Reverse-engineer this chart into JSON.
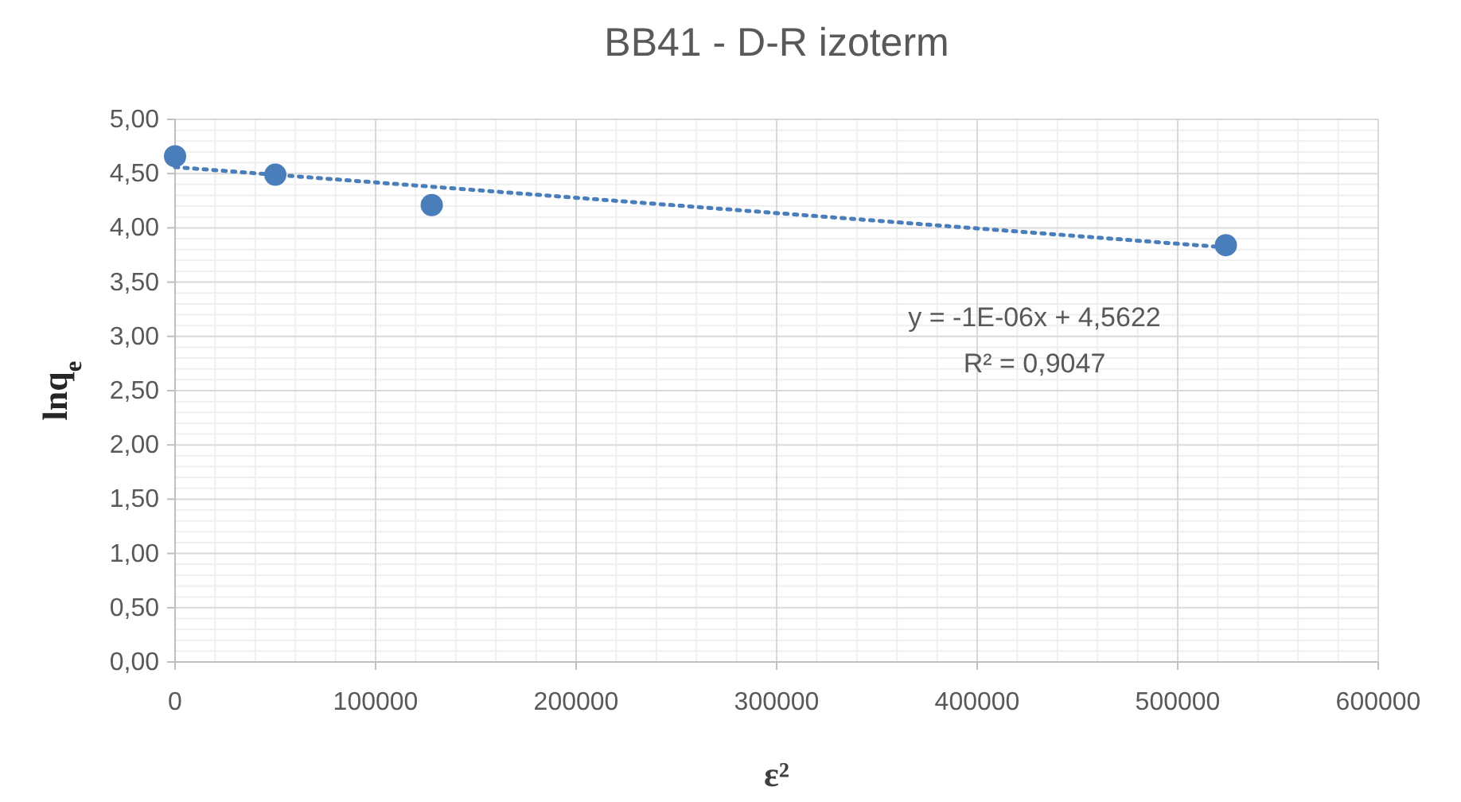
{
  "chart_data": {
    "type": "scatter",
    "title": "BB41 - D-R izoterm",
    "xlabel": "ε²",
    "ylabel": "lnq$_{e}$",
    "xlim": [
      0,
      600000
    ],
    "xticks": [
      0,
      100000,
      200000,
      300000,
      400000,
      500000,
      600000
    ],
    "ylim": [
      0,
      5
    ],
    "yticks": [
      {
        "value": 0,
        "label": "0,00"
      },
      {
        "value": 0.5,
        "label": "0,50"
      },
      {
        "value": 1,
        "label": "1,00"
      },
      {
        "value": 1.5,
        "label": "1,50"
      },
      {
        "value": 2,
        "label": "2,00"
      },
      {
        "value": 2.5,
        "label": "2,50"
      },
      {
        "value": 3,
        "label": "3,00"
      },
      {
        "value": 3.5,
        "label": "3,50"
      },
      {
        "value": 4,
        "label": "4,00"
      },
      {
        "value": 4.5,
        "label": "4,50"
      },
      {
        "value": 5,
        "label": "5,00"
      }
    ],
    "grid": true,
    "marker": "circle",
    "series": [
      {
        "color": "#4a7ebb",
        "x": [
          0,
          50000,
          128000,
          524000
        ],
        "values": [
          4.66,
          4.49,
          4.21,
          3.84
        ]
      },
      {
        "type": "line",
        "color": "#4a7ebb",
        "line_style": "dotted",
        "marker": "none",
        "x": [
          0,
          524000
        ],
        "values": [
          4.56,
          3.82
        ]
      }
    ],
    "annotations": [
      "y = -1E-06x + 4,5622",
      "R² = 0,9047"
    ]
  }
}
